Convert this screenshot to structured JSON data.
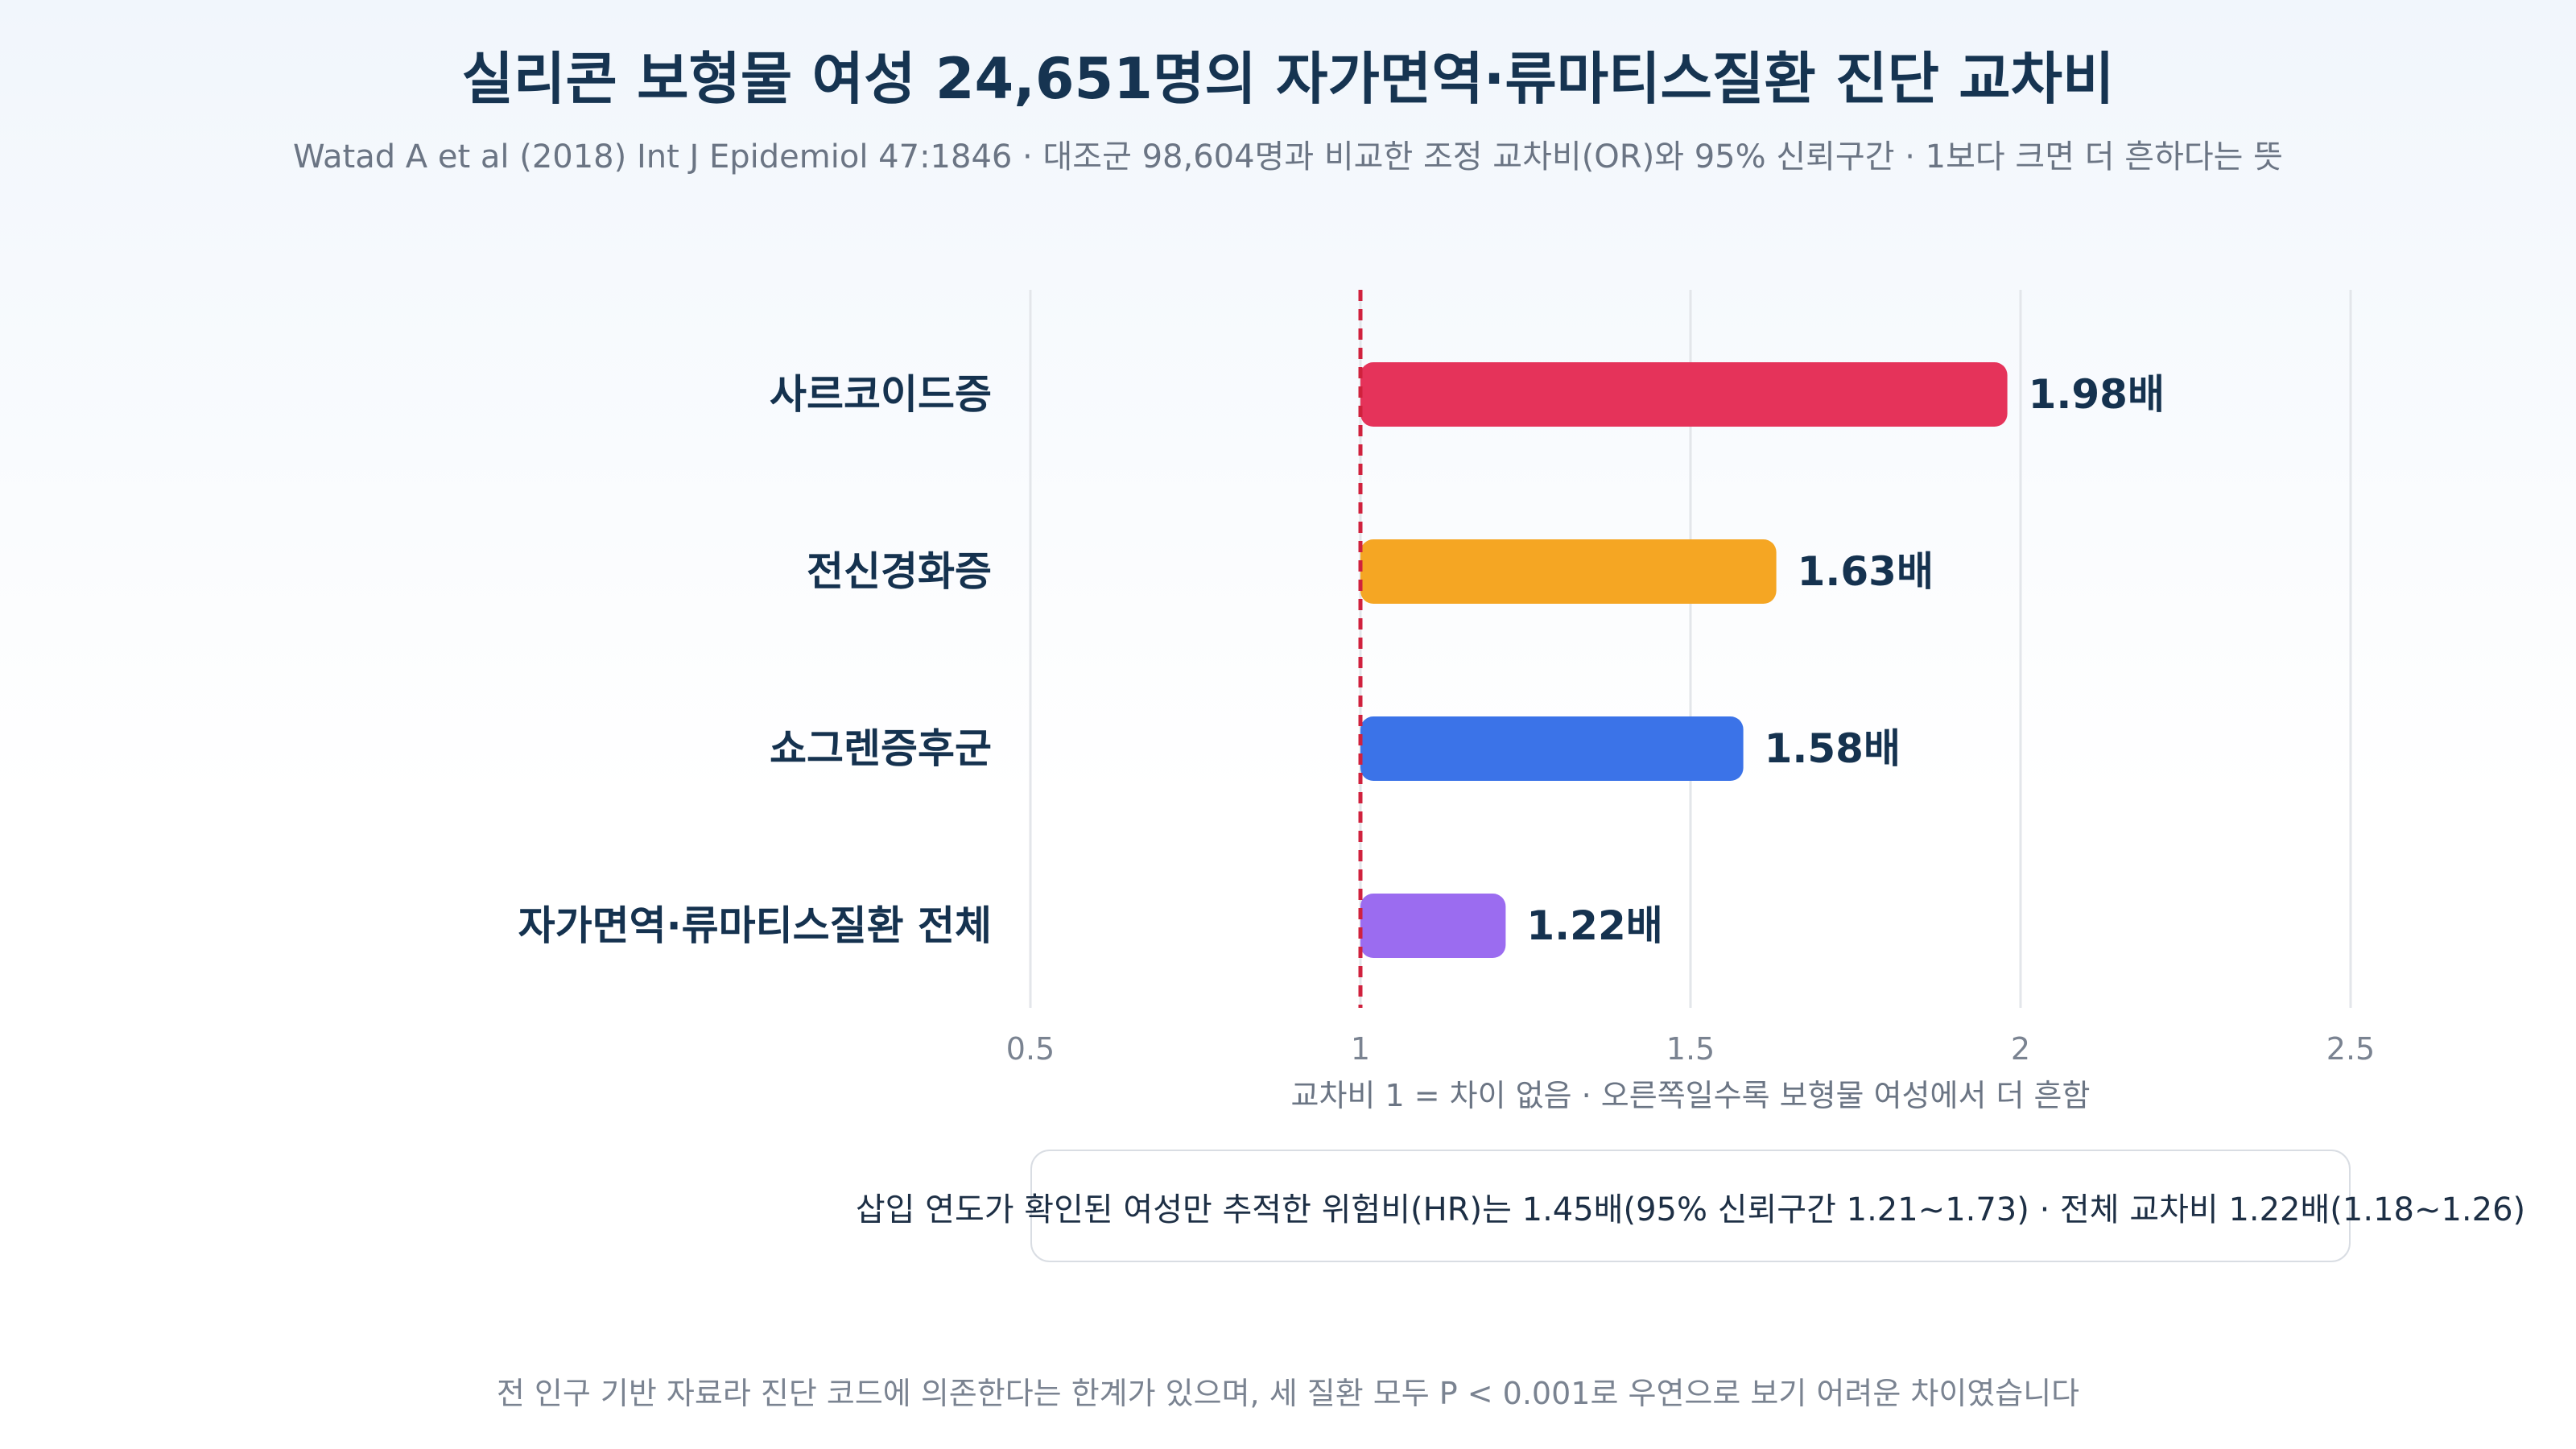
{
  "header": {
    "title": "실리콘 보형물 여성 24,651명의 자가면역·류마티스질환 진단 교차비",
    "subtitle": "Watad A et al (2018) Int J Epidemiol 47:1846 · 대조군 98,604명과 비교한 조정 교차비(OR)와 95% 신뢰구간 · 1보다 크면 더 흔하다는 뜻"
  },
  "chart_data": {
    "type": "bar",
    "orientation": "horizontal",
    "categories": [
      "사르코이드증",
      "전신경화증",
      "쇼그렌증후군",
      "자가면역·류마티스질환 전체"
    ],
    "values": [
      1.98,
      1.63,
      1.58,
      1.22
    ],
    "value_labels": [
      "1.98배",
      "1.63배",
      "1.58배",
      "1.22배"
    ],
    "bar_colors": [
      "#e5335a",
      "#f5a623",
      "#3b73e8",
      "#9b6cf0"
    ],
    "baseline": 1,
    "baseline_color": "#d0213d",
    "xlim": [
      0.5,
      2.5
    ],
    "xticks": [
      "0.5",
      "1",
      "1.5",
      "2",
      "2.5"
    ],
    "xlabel": "교차비 1 = 차이 없음 · 오른쪽일수록 보형물 여성에서 더 흔함",
    "grid": true
  },
  "note": "삽입 연도가 확인된 여성만 추적한 위험비(HR)는 1.45배(95% 신뢰구간 1.21~1.73) · 전체 교차비 1.22배(1.18~1.26)",
  "footnote": "전 인구 기반 자료라 진단 코드에 의존한다는 한계가 있으며, 세 질환 모두 P < 0.001로 우연으로 보기 어려운 차이였습니다"
}
